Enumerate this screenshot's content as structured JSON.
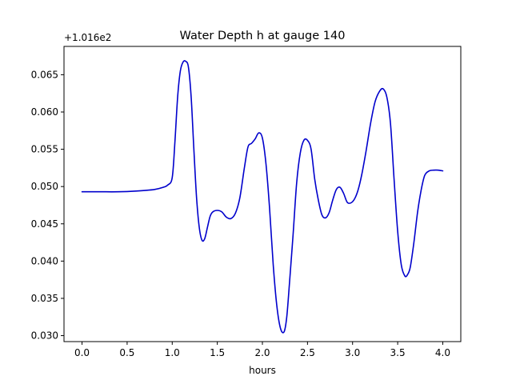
{
  "chart_data": {
    "type": "line",
    "title": "Water Depth h at gauge 140",
    "xlabel": "hours",
    "ylabel": "",
    "offset_label": "+1.016e2",
    "xlim": [
      -0.2,
      4.2
    ],
    "ylim": [
      0.0292,
      0.0688
    ],
    "x_ticks": [
      0.0,
      0.5,
      1.0,
      1.5,
      2.0,
      2.5,
      3.0,
      3.5,
      4.0
    ],
    "x_tick_labels": [
      "0.0",
      "0.5",
      "1.0",
      "1.5",
      "2.0",
      "2.5",
      "3.0",
      "3.5",
      "4.0"
    ],
    "y_ticks": [
      0.03,
      0.035,
      0.04,
      0.045,
      0.05,
      0.055,
      0.06,
      0.065
    ],
    "y_tick_labels": [
      "0.030",
      "0.035",
      "0.040",
      "0.045",
      "0.050",
      "0.055",
      "0.060",
      "0.065"
    ],
    "grid": false,
    "series": [
      {
        "color": "#0000cc",
        "x": [
          0.0,
          0.2,
          0.4,
          0.6,
          0.8,
          0.9,
          0.95,
          1.0,
          1.03,
          1.06,
          1.09,
          1.12,
          1.15,
          1.18,
          1.21,
          1.24,
          1.27,
          1.3,
          1.33,
          1.36,
          1.39,
          1.42,
          1.45,
          1.5,
          1.55,
          1.6,
          1.65,
          1.7,
          1.75,
          1.8,
          1.84,
          1.88,
          1.92,
          1.96,
          2.0,
          2.04,
          2.08,
          2.12,
          2.16,
          2.2,
          2.24,
          2.27,
          2.3,
          2.34,
          2.38,
          2.42,
          2.46,
          2.5,
          2.54,
          2.58,
          2.62,
          2.66,
          2.7,
          2.74,
          2.78,
          2.82,
          2.86,
          2.9,
          2.94,
          2.98,
          3.02,
          3.06,
          3.1,
          3.15,
          3.2,
          3.25,
          3.3,
          3.34,
          3.38,
          3.42,
          3.46,
          3.5,
          3.54,
          3.58,
          3.61,
          3.64,
          3.68,
          3.72,
          3.76,
          3.8,
          3.85,
          3.9,
          3.95,
          4.0
        ],
        "y": [
          0.0493,
          0.0493,
          0.0493,
          0.0494,
          0.0496,
          0.0499,
          0.0502,
          0.0512,
          0.056,
          0.062,
          0.0655,
          0.0667,
          0.0668,
          0.066,
          0.062,
          0.055,
          0.0485,
          0.0445,
          0.0428,
          0.043,
          0.0445,
          0.046,
          0.0466,
          0.0468,
          0.0466,
          0.0459,
          0.0457,
          0.0464,
          0.0485,
          0.0525,
          0.0553,
          0.0558,
          0.0564,
          0.0572,
          0.0565,
          0.053,
          0.047,
          0.0395,
          0.034,
          0.031,
          0.0305,
          0.0325,
          0.037,
          0.0435,
          0.0505,
          0.0545,
          0.0562,
          0.0562,
          0.055,
          0.051,
          0.0482,
          0.0462,
          0.0458,
          0.0465,
          0.0482,
          0.0496,
          0.0499,
          0.0491,
          0.0479,
          0.0478,
          0.0483,
          0.0495,
          0.0515,
          0.0548,
          0.0585,
          0.0614,
          0.0628,
          0.0631,
          0.062,
          0.0585,
          0.051,
          0.044,
          0.0395,
          0.038,
          0.0382,
          0.0392,
          0.0425,
          0.0465,
          0.0495,
          0.0515,
          0.0521,
          0.0522,
          0.0522,
          0.0521
        ]
      }
    ]
  }
}
